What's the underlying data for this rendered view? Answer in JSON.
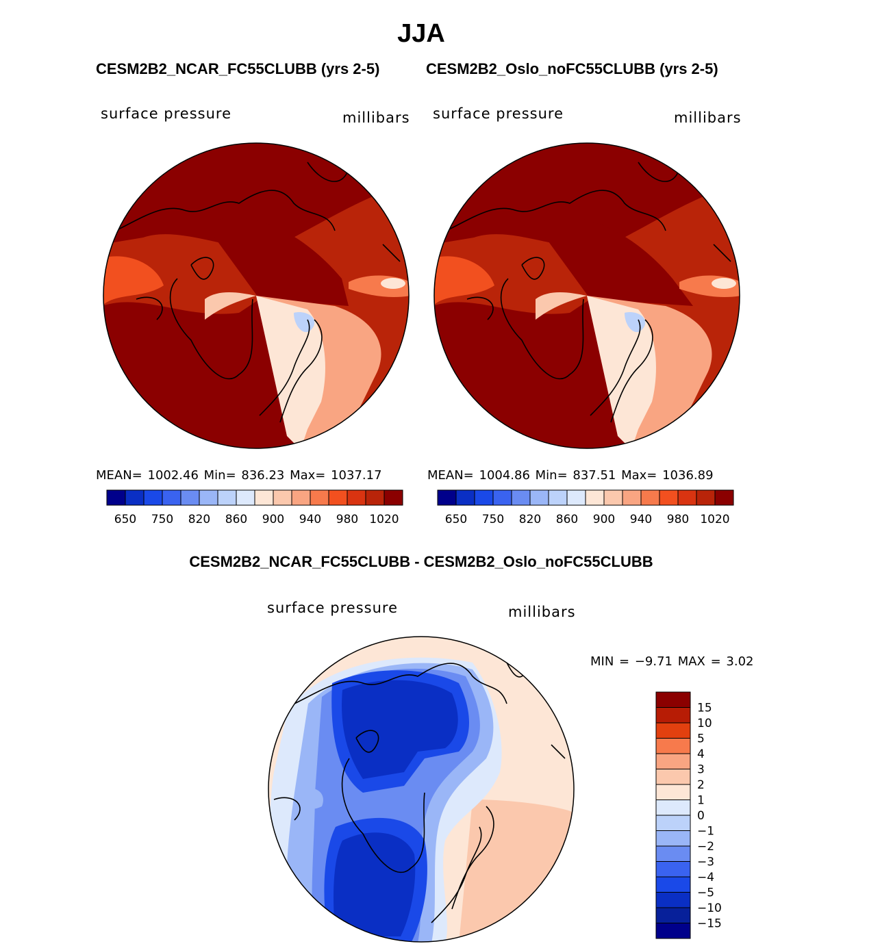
{
  "title": "JJA",
  "subtitle_left": "CESM2B2_NCAR_FC55CLUBB (yrs 2-5)",
  "subtitle_right": "CESM2B2_Oslo_noFC55CLUBB (yrs 2-5)",
  "diff_title": "CESM2B2_NCAR_FC55CLUBB - CESM2B2_Oslo_noFC55CLUBB",
  "panels": {
    "left": {
      "variable": "surface pressure",
      "units": "millibars",
      "stats": "MEAN= 1002.46   Min= 836.23   Max= 1037.17"
    },
    "right": {
      "variable": "surface pressure",
      "units": "millibars",
      "stats": "MEAN= 1004.86   Min= 837.51   Max= 1036.89"
    },
    "diff": {
      "variable": "surface pressure",
      "units": "millibars",
      "stats": "MIN =   −9.71  MAX =     3.02"
    }
  },
  "colorbar_top": {
    "colors": [
      "#00008b",
      "#0a2fc4",
      "#1a49e8",
      "#3a63f0",
      "#6a8cf2",
      "#9ab6f7",
      "#bcd2fa",
      "#dde9fc",
      "#fde6d6",
      "#fbc8ad",
      "#f9a582",
      "#f77a4c",
      "#f2501f",
      "#d93411",
      "#b92409",
      "#8b0000"
    ],
    "labels": [
      "650",
      "750",
      "820",
      "860",
      "900",
      "940",
      "980",
      "1020"
    ]
  },
  "colorbar_diff": {
    "colors": [
      "#8b0000",
      "#b71c05",
      "#e2400f",
      "#f77a4c",
      "#f9a582",
      "#fbc8ad",
      "#fde6d6",
      "#dde9fc",
      "#bcd2fa",
      "#9ab6f7",
      "#6a8cf2",
      "#3a63f0",
      "#1a49e8",
      "#0a2fc4",
      "#07209a",
      "#00008b"
    ],
    "labels": [
      "15",
      "10",
      "5",
      "4",
      "3",
      "2",
      "1",
      "0",
      "−1",
      "−2",
      "−3",
      "−4",
      "−5",
      "−10",
      "−15"
    ]
  },
  "map_colors": {
    "dark_red": "#8b0000",
    "red": "#b92409",
    "orange": "#f2501f",
    "peach": "#fde6d6",
    "light_blue": "#dde9fc",
    "blue": "#1a49e8",
    "deep_blue": "#0a2fc4"
  }
}
